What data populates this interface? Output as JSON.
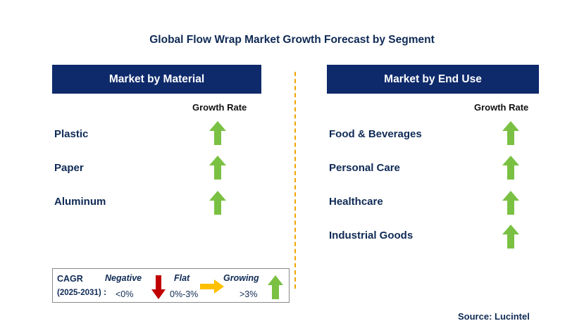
{
  "title": "Global Flow Wrap Market Growth Forecast by Segment",
  "left_panel": {
    "header": "Market by Material",
    "growth_label": "Growth Rate",
    "items": [
      {
        "label": "Plastic",
        "trend": "growing"
      },
      {
        "label": "Paper",
        "trend": "growing"
      },
      {
        "label": "Aluminum",
        "trend": "growing"
      }
    ]
  },
  "right_panel": {
    "header": "Market by End Use",
    "growth_label": "Growth Rate",
    "items": [
      {
        "label": "Food & Beverages",
        "trend": "growing"
      },
      {
        "label": "Personal Care",
        "trend": "growing"
      },
      {
        "label": "Healthcare",
        "trend": "growing"
      },
      {
        "label": "Industrial Goods",
        "trend": "growing"
      }
    ]
  },
  "legend": {
    "cagr_label": "CAGR",
    "period": "(2025-2031)",
    "colon": ":",
    "negative": {
      "label": "Negative",
      "range": "<0%",
      "color": "#c00000",
      "icon": "down-arrow-icon"
    },
    "flat": {
      "label": "Flat",
      "range": "0%-3%",
      "color": "#ffc000",
      "icon": "right-arrow-icon"
    },
    "growing": {
      "label": "Growing",
      "range": ">3%",
      "color": "#7ac143",
      "icon": "up-arrow-icon"
    }
  },
  "source": "Source: Lucintel",
  "colors": {
    "header_bg": "#0e2a6b",
    "text": "#0f2a55",
    "up_arrow": "#7ac143",
    "divider": "#f0a500"
  }
}
